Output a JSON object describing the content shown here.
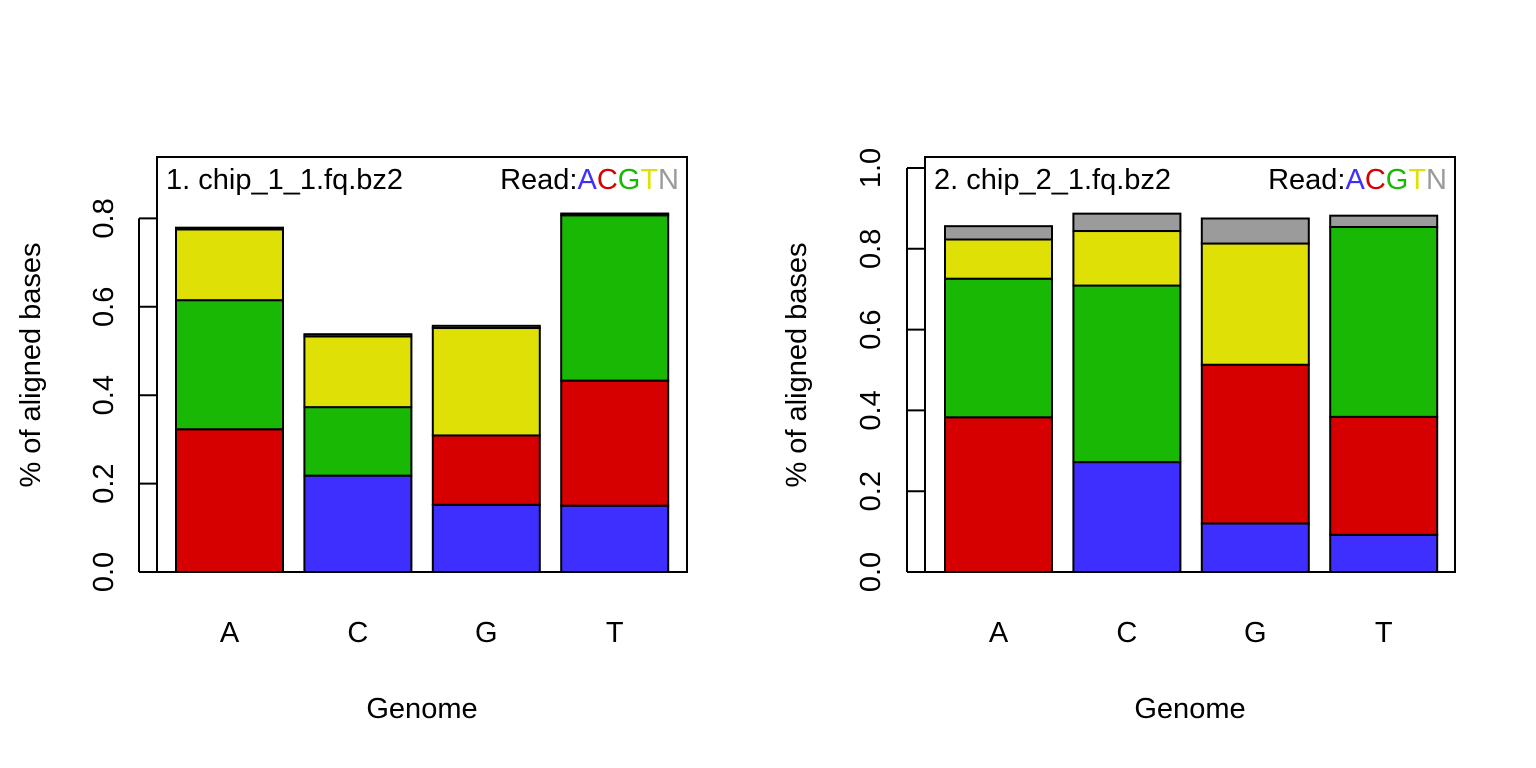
{
  "colors": {
    "A": "#3f2fff",
    "C": "#d60000",
    "G": "#18b804",
    "T": "#dfe106",
    "N": "#9b9b9b"
  },
  "legend": {
    "prefix": "Read:",
    "letters": [
      "A",
      "C",
      "G",
      "T",
      "N"
    ]
  },
  "chart_data": [
    {
      "type": "bar",
      "stacked": true,
      "title": "1. chip_1_1.fq.bz2",
      "xlabel": "Genome",
      "ylabel": "% of aligned bases",
      "categories": [
        "A",
        "C",
        "G",
        "T"
      ],
      "ylim": [
        0,
        0.9
      ],
      "yticks": [
        "0.0",
        "0.2",
        "0.4",
        "0.6",
        "0.8"
      ],
      "ytick_values": [
        0,
        0.2,
        0.4,
        0.6,
        0.8
      ],
      "series": [
        {
          "name": "A",
          "values": [
            0.0,
            0.218,
            0.152,
            0.15
          ]
        },
        {
          "name": "C",
          "values": [
            0.323,
            0.0,
            0.157,
            0.283
          ]
        },
        {
          "name": "G",
          "values": [
            0.292,
            0.155,
            0.0,
            0.374
          ]
        },
        {
          "name": "T",
          "values": [
            0.16,
            0.16,
            0.243,
            0.0
          ]
        },
        {
          "name": "N",
          "values": [
            0.004,
            0.005,
            0.005,
            0.004
          ]
        }
      ]
    },
    {
      "type": "bar",
      "stacked": true,
      "title": "2. chip_2_1.fq.bz2",
      "xlabel": "Genome",
      "ylabel": "% of aligned bases",
      "categories": [
        "A",
        "C",
        "G",
        "T"
      ],
      "ylim": [
        0,
        1.0
      ],
      "yticks": [
        "0.0",
        "0.2",
        "0.4",
        "0.6",
        "0.8",
        "1.0"
      ],
      "ytick_values": [
        0,
        0.2,
        0.4,
        0.6,
        0.8,
        1.0
      ],
      "series": [
        {
          "name": "A",
          "values": [
            0.0,
            0.272,
            0.12,
            0.092
          ]
        },
        {
          "name": "C",
          "values": [
            0.383,
            0.0,
            0.393,
            0.292
          ]
        },
        {
          "name": "G",
          "values": [
            0.343,
            0.437,
            0.0,
            0.47
          ]
        },
        {
          "name": "T",
          "values": [
            0.097,
            0.135,
            0.3,
            0.0
          ]
        },
        {
          "name": "N",
          "values": [
            0.033,
            0.043,
            0.062,
            0.028
          ]
        }
      ]
    }
  ]
}
